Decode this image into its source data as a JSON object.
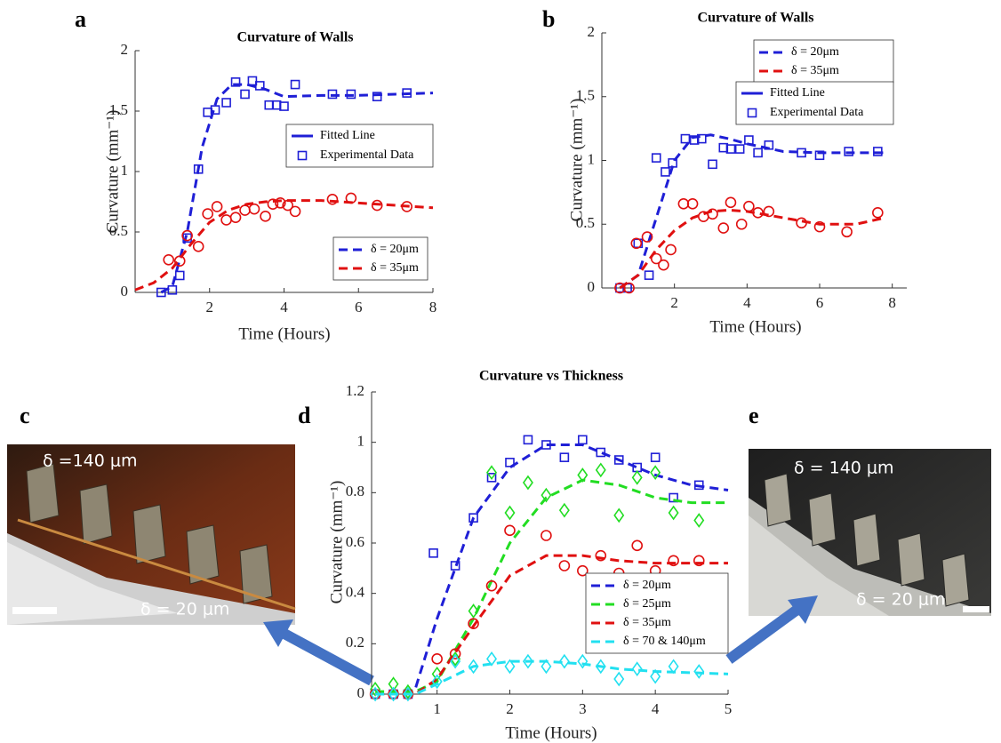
{
  "chart_data": [
    {
      "type": "line",
      "title": "Curvature of Walls",
      "xlabel": "Time (Hours)",
      "ylabel": "Curvature (mm⁻¹)",
      "xlim": [
        0,
        8
      ],
      "ylim": [
        0,
        2
      ],
      "xticks": [
        2,
        4,
        6,
        8
      ],
      "yticks": [
        0,
        0.5,
        1,
        1.5,
        2
      ],
      "legend_loc": "lower right",
      "legend_styles": [
        "Fitted Line",
        "Experimental Data"
      ],
      "series": [
        {
          "name": "δ = 20μm",
          "color": "#1f1fd6",
          "marker": "square",
          "x": [
            0.7,
            1.0,
            1.2,
            1.4,
            1.7,
            1.95,
            2.15,
            2.45,
            2.7,
            2.95,
            3.15,
            3.35,
            3.6,
            3.8,
            4.0,
            4.3,
            5.3,
            5.8,
            6.5,
            7.3
          ],
          "values": [
            0,
            0.02,
            0.14,
            0.45,
            1.02,
            1.49,
            1.51,
            1.57,
            1.74,
            1.64,
            1.75,
            1.71,
            1.55,
            1.55,
            1.54,
            1.72,
            1.64,
            1.64,
            1.62,
            1.65
          ],
          "fit_x": [
            0.7,
            1.0,
            1.4,
            1.8,
            2.2,
            2.6,
            3.0,
            3.5,
            4.0,
            5,
            6,
            7,
            8
          ],
          "fit_values": [
            0,
            0.05,
            0.5,
            1.2,
            1.6,
            1.72,
            1.72,
            1.68,
            1.62,
            1.63,
            1.63,
            1.64,
            1.65
          ]
        },
        {
          "name": "δ = 35μm",
          "color": "#e01010",
          "marker": "circle",
          "x": [
            0.9,
            1.2,
            1.4,
            1.7,
            1.95,
            2.2,
            2.45,
            2.7,
            2.95,
            3.2,
            3.5,
            3.7,
            3.9,
            4.1,
            4.3,
            5.3,
            5.8,
            6.5,
            7.3
          ],
          "values": [
            0.27,
            0.26,
            0.47,
            0.38,
            0.65,
            0.71,
            0.6,
            0.62,
            0.68,
            0.69,
            0.63,
            0.73,
            0.74,
            0.72,
            0.67,
            0.77,
            0.78,
            0.72,
            0.71
          ],
          "fit_x": [
            0,
            0.5,
            1,
            1.5,
            2,
            2.5,
            3,
            3.5,
            4,
            5,
            6,
            7,
            8
          ],
          "fit_values": [
            0.02,
            0.08,
            0.2,
            0.4,
            0.58,
            0.68,
            0.73,
            0.75,
            0.76,
            0.76,
            0.74,
            0.72,
            0.7
          ]
        }
      ]
    },
    {
      "type": "line",
      "title": "Curvature of Walls",
      "xlabel": "Time (Hours)",
      "ylabel": "Curvature (mm⁻¹)",
      "xlim": [
        0,
        8.4
      ],
      "ylim": [
        0,
        2
      ],
      "xticks": [
        2,
        4,
        6,
        8
      ],
      "yticks": [
        0,
        0.5,
        1,
        1.5,
        2
      ],
      "legend_loc": "upper right",
      "legend_styles": [
        "Fitted Line",
        "Experimental Data"
      ],
      "series": [
        {
          "name": "δ = 20μm",
          "color": "#1f1fd6",
          "marker": "square",
          "x": [
            0.5,
            0.7,
            1.0,
            1.3,
            1.5,
            1.75,
            1.95,
            2.3,
            2.55,
            2.75,
            3.05,
            3.35,
            3.55,
            3.8,
            4.05,
            4.3,
            4.6,
            5.5,
            6.0,
            6.8,
            7.6
          ],
          "values": [
            0,
            0,
            0.35,
            0.1,
            1.02,
            0.91,
            0.98,
            1.17,
            1.16,
            1.17,
            0.97,
            1.1,
            1.09,
            1.09,
            1.16,
            1.06,
            1.12,
            1.06,
            1.04,
            1.07,
            1.07
          ],
          "fit_x": [
            0.5,
            1,
            1.5,
            2,
            2.5,
            3,
            3.5,
            4,
            5,
            6,
            7,
            7.8
          ],
          "fit_values": [
            0,
            0.1,
            0.55,
            1.0,
            1.18,
            1.2,
            1.17,
            1.13,
            1.07,
            1.06,
            1.06,
            1.06
          ]
        },
        {
          "name": "δ = 35μm",
          "color": "#e01010",
          "marker": "circle",
          "x": [
            0.5,
            0.75,
            0.95,
            1.25,
            1.5,
            1.7,
            1.9,
            2.25,
            2.5,
            2.8,
            3.05,
            3.35,
            3.55,
            3.85,
            4.05,
            4.3,
            4.6,
            5.5,
            6.0,
            6.75,
            7.6
          ],
          "values": [
            0,
            0,
            0.35,
            0.4,
            0.23,
            0.18,
            0.3,
            0.66,
            0.66,
            0.56,
            0.58,
            0.47,
            0.67,
            0.5,
            0.64,
            0.59,
            0.6,
            0.51,
            0.48,
            0.44,
            0.59
          ],
          "fit_x": [
            0.5,
            1,
            1.5,
            2,
            2.5,
            3,
            3.5,
            4,
            5,
            6,
            7,
            7.8
          ],
          "fit_values": [
            0,
            0.1,
            0.3,
            0.45,
            0.55,
            0.6,
            0.61,
            0.6,
            0.55,
            0.5,
            0.5,
            0.55
          ]
        }
      ]
    },
    {
      "type": "line",
      "title": "Curvature vs Thickness",
      "xlabel": "Time (Hours)",
      "ylabel": "Curvature (mm⁻¹)",
      "xlim": [
        0.1,
        5
      ],
      "ylim": [
        0,
        1.2
      ],
      "xticks": [
        1,
        2,
        3,
        4,
        5
      ],
      "yticks": [
        0,
        0.2,
        0.4,
        0.6,
        0.8,
        1,
        1.2
      ],
      "legend_loc": "lower right",
      "series": [
        {
          "name": "δ = 20μm",
          "color": "#1f1fd6",
          "marker": "square",
          "x": [
            0.15,
            0.4,
            0.6,
            0.95,
            1.25,
            1.5,
            1.75,
            2.0,
            2.25,
            2.5,
            2.75,
            3.0,
            3.25,
            3.5,
            3.75,
            4.0,
            4.25,
            4.6
          ],
          "values": [
            0,
            0,
            0,
            0.56,
            0.51,
            0.7,
            0.86,
            0.92,
            1.01,
            0.99,
            0.94,
            1.01,
            0.96,
            0.93,
            0.9,
            0.94,
            0.78,
            0.83
          ],
          "fit_x": [
            0.15,
            0.5,
            0.7,
            1,
            1.5,
            2,
            2.5,
            3,
            3.5,
            4,
            4.5,
            5
          ],
          "fit_values": [
            0,
            0,
            0.02,
            0.3,
            0.7,
            0.9,
            0.99,
            0.99,
            0.93,
            0.87,
            0.83,
            0.81
          ]
        },
        {
          "name": "δ = 25μm",
          "color": "#22dd22",
          "marker": "diamond",
          "x": [
            0.15,
            0.4,
            0.6,
            1.0,
            1.25,
            1.5,
            1.75,
            2.0,
            2.25,
            2.5,
            2.75,
            3.0,
            3.25,
            3.5,
            3.75,
            4.0,
            4.25,
            4.6
          ],
          "values": [
            0.02,
            0.04,
            0.01,
            0.08,
            0.14,
            0.33,
            0.88,
            0.72,
            0.84,
            0.79,
            0.73,
            0.87,
            0.89,
            0.71,
            0.86,
            0.88,
            0.72,
            0.69
          ],
          "fit_x": [
            0.15,
            0.7,
            1,
            1.5,
            2,
            2.5,
            3,
            3.5,
            4,
            4.5,
            5
          ],
          "fit_values": [
            0.01,
            0.01,
            0.05,
            0.3,
            0.6,
            0.78,
            0.85,
            0.83,
            0.78,
            0.76,
            0.76
          ]
        },
        {
          "name": "δ = 35μm",
          "color": "#e01010",
          "marker": "circle",
          "x": [
            0.15,
            0.4,
            0.6,
            1.0,
            1.25,
            1.5,
            1.75,
            2.0,
            2.5,
            2.75,
            3.0,
            3.25,
            3.5,
            3.75,
            4.0,
            4.25,
            4.6
          ],
          "values": [
            0,
            0,
            0,
            0.14,
            0.16,
            0.28,
            0.43,
            0.65,
            0.63,
            0.51,
            0.49,
            0.55,
            0.48,
            0.59,
            0.49,
            0.53,
            0.53
          ],
          "fit_x": [
            0.15,
            0.7,
            1,
            1.5,
            2,
            2.5,
            3,
            3.5,
            4,
            5
          ],
          "fit_values": [
            0,
            0,
            0.06,
            0.27,
            0.47,
            0.55,
            0.55,
            0.53,
            0.52,
            0.52
          ]
        },
        {
          "name": "δ = 70 & 140μm",
          "color": "#22e0f0",
          "marker": "diamond",
          "x": [
            0.15,
            0.4,
            0.6,
            1.0,
            1.25,
            1.5,
            1.75,
            2.0,
            2.25,
            2.5,
            2.75,
            3.0,
            3.25,
            3.5,
            3.75,
            4.0,
            4.25,
            4.6
          ],
          "values": [
            0,
            0,
            0,
            0.05,
            0.13,
            0.11,
            0.14,
            0.11,
            0.13,
            0.11,
            0.13,
            0.13,
            0.11,
            0.06,
            0.1,
            0.07,
            0.11,
            0.09
          ],
          "fit_x": [
            0.15,
            0.7,
            1,
            1.5,
            2,
            2.5,
            3,
            3.5,
            4,
            5
          ],
          "fit_values": [
            0,
            0,
            0.04,
            0.11,
            0.13,
            0.13,
            0.12,
            0.1,
            0.09,
            0.08
          ]
        }
      ]
    }
  ],
  "panel_labels": [
    "a",
    "b",
    "c",
    "d",
    "e"
  ],
  "photos": [
    {
      "top_label": "δ =140 μm",
      "bottom_label": "δ = 20 μm"
    },
    {
      "top_label": "δ = 140 μm",
      "bottom_label": "δ = 20 μm"
    }
  ]
}
